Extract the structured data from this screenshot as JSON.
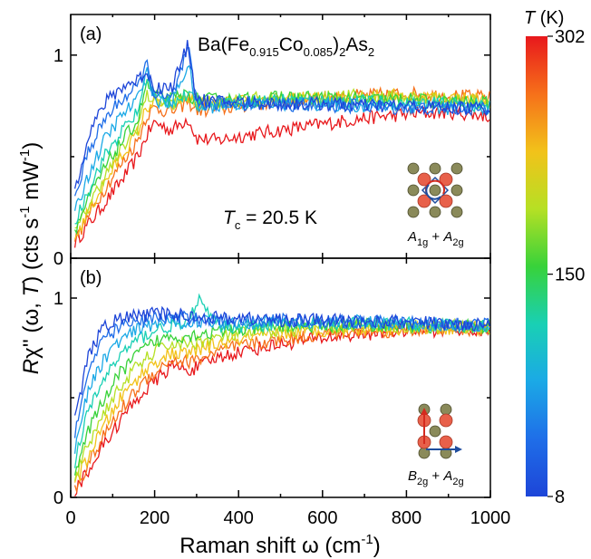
{
  "chart_data": [
    {
      "panel": "(a)",
      "type": "line",
      "compound": "Ba(Fe0.915Co0.085)2As2",
      "annotation": "Tc = 20.5 K",
      "symmetry": "A1g + A2g",
      "xlim": [
        0,
        1000
      ],
      "ylim": [
        0,
        1.2
      ],
      "yticks": [
        0,
        1
      ],
      "series": [
        {
          "T": 302,
          "color": "#e8181c",
          "x": [
            10,
            40,
            80,
            120,
            160,
            180,
            200,
            240,
            280,
            300,
            350,
            400,
            500,
            600,
            700,
            800,
            900,
            1000
          ],
          "y": [
            0.08,
            0.16,
            0.27,
            0.38,
            0.5,
            0.6,
            0.67,
            0.63,
            0.69,
            0.59,
            0.58,
            0.6,
            0.63,
            0.66,
            0.69,
            0.71,
            0.72,
            0.7
          ]
        },
        {
          "T": 260,
          "color": "#f6701a",
          "x": [
            10,
            40,
            80,
            120,
            160,
            180,
            200,
            240,
            280,
            300,
            350,
            400,
            500,
            600,
            700,
            800,
            900,
            1000
          ],
          "y": [
            0.09,
            0.2,
            0.34,
            0.46,
            0.58,
            0.7,
            0.74,
            0.72,
            0.77,
            0.73,
            0.73,
            0.75,
            0.77,
            0.79,
            0.8,
            0.81,
            0.8,
            0.79
          ]
        },
        {
          "T": 220,
          "color": "#f2c21a",
          "x": [
            10,
            40,
            80,
            120,
            160,
            180,
            200,
            240,
            280,
            300,
            350,
            400,
            500,
            600,
            700,
            800,
            900,
            1000
          ],
          "y": [
            0.1,
            0.22,
            0.37,
            0.5,
            0.62,
            0.74,
            0.77,
            0.75,
            0.8,
            0.76,
            0.76,
            0.77,
            0.78,
            0.79,
            0.8,
            0.8,
            0.79,
            0.78
          ]
        },
        {
          "T": 180,
          "color": "#b6e024",
          "x": [
            10,
            40,
            80,
            120,
            160,
            180,
            200,
            240,
            280,
            300,
            350,
            400,
            500,
            600,
            700,
            800,
            900,
            1000
          ],
          "y": [
            0.12,
            0.25,
            0.4,
            0.53,
            0.65,
            0.8,
            0.78,
            0.76,
            0.79,
            0.77,
            0.77,
            0.78,
            0.79,
            0.79,
            0.8,
            0.79,
            0.78,
            0.77
          ]
        },
        {
          "T": 150,
          "color": "#38d23a",
          "x": [
            10,
            40,
            80,
            120,
            160,
            180,
            200,
            240,
            280,
            300,
            350,
            400,
            500,
            600,
            700,
            800,
            900,
            1000
          ],
          "y": [
            0.14,
            0.28,
            0.44,
            0.57,
            0.68,
            0.86,
            0.8,
            0.78,
            0.81,
            0.78,
            0.78,
            0.78,
            0.79,
            0.79,
            0.78,
            0.78,
            0.77,
            0.76
          ]
        },
        {
          "T": 110,
          "color": "#19d0b4",
          "x": [
            10,
            40,
            80,
            120,
            160,
            180,
            200,
            240,
            280,
            300,
            350,
            400,
            500,
            600,
            700,
            800,
            900,
            1000
          ],
          "y": [
            0.17,
            0.33,
            0.5,
            0.62,
            0.72,
            0.9,
            0.79,
            0.77,
            0.8,
            0.76,
            0.77,
            0.77,
            0.78,
            0.77,
            0.77,
            0.76,
            0.76,
            0.75
          ]
        },
        {
          "T": 70,
          "color": "#1ba9e6",
          "x": [
            10,
            40,
            80,
            120,
            160,
            180,
            200,
            240,
            280,
            300,
            350,
            400,
            500,
            600,
            700,
            800,
            900,
            1000
          ],
          "y": [
            0.22,
            0.4,
            0.58,
            0.7,
            0.78,
            0.94,
            0.78,
            0.76,
            0.96,
            0.74,
            0.75,
            0.76,
            0.76,
            0.76,
            0.75,
            0.75,
            0.74,
            0.74
          ]
        },
        {
          "T": 30,
          "color": "#1f6ee8",
          "x": [
            10,
            40,
            80,
            120,
            160,
            180,
            200,
            240,
            280,
            300,
            350,
            400,
            500,
            600,
            700,
            800,
            900,
            1000
          ],
          "y": [
            0.28,
            0.52,
            0.68,
            0.78,
            0.84,
            0.96,
            0.8,
            0.78,
            1.03,
            0.76,
            0.76,
            0.76,
            0.76,
            0.75,
            0.75,
            0.74,
            0.74,
            0.73
          ]
        },
        {
          "T": 8,
          "color": "#1d45d8",
          "x": [
            10,
            40,
            80,
            120,
            160,
            180,
            200,
            240,
            280,
            300,
            350,
            400,
            500,
            600,
            700,
            800,
            900,
            1000
          ],
          "y": [
            0.33,
            0.6,
            0.76,
            0.84,
            0.88,
            0.92,
            0.84,
            0.84,
            1.05,
            0.78,
            0.77,
            0.77,
            0.76,
            0.76,
            0.75,
            0.75,
            0.74,
            0.74
          ]
        }
      ]
    },
    {
      "panel": "(b)",
      "type": "line",
      "symmetry": "B2g + A2g",
      "xlim": [
        0,
        1000
      ],
      "ylim": [
        0,
        1.2
      ],
      "yticks": [
        0,
        1
      ],
      "series": [
        {
          "T": 302,
          "color": "#e8181c",
          "x": [
            10,
            40,
            80,
            120,
            160,
            200,
            240,
            280,
            300,
            350,
            400,
            500,
            600,
            700,
            800,
            900,
            1000
          ],
          "y": [
            0.03,
            0.13,
            0.27,
            0.39,
            0.5,
            0.58,
            0.66,
            0.64,
            0.65,
            0.7,
            0.73,
            0.77,
            0.8,
            0.82,
            0.84,
            0.84,
            0.84
          ]
        },
        {
          "T": 260,
          "color": "#f6701a",
          "x": [
            10,
            40,
            80,
            120,
            160,
            200,
            240,
            280,
            300,
            350,
            400,
            500,
            600,
            700,
            800,
            900,
            1000
          ],
          "y": [
            0.04,
            0.16,
            0.31,
            0.44,
            0.55,
            0.63,
            0.69,
            0.68,
            0.69,
            0.73,
            0.76,
            0.79,
            0.82,
            0.83,
            0.84,
            0.85,
            0.84
          ]
        },
        {
          "T": 220,
          "color": "#f2c21a",
          "x": [
            10,
            40,
            80,
            120,
            160,
            200,
            240,
            280,
            300,
            350,
            400,
            500,
            600,
            700,
            800,
            900,
            1000
          ],
          "y": [
            0.06,
            0.2,
            0.36,
            0.5,
            0.6,
            0.68,
            0.72,
            0.72,
            0.74,
            0.77,
            0.79,
            0.82,
            0.84,
            0.85,
            0.85,
            0.85,
            0.85
          ]
        },
        {
          "T": 180,
          "color": "#b6e024",
          "x": [
            10,
            40,
            80,
            120,
            160,
            200,
            240,
            280,
            300,
            350,
            400,
            500,
            600,
            700,
            800,
            900,
            1000
          ],
          "y": [
            0.09,
            0.26,
            0.43,
            0.56,
            0.66,
            0.73,
            0.77,
            0.77,
            0.78,
            0.8,
            0.82,
            0.84,
            0.85,
            0.86,
            0.86,
            0.86,
            0.85
          ]
        },
        {
          "T": 150,
          "color": "#38d23a",
          "x": [
            10,
            40,
            80,
            120,
            160,
            200,
            240,
            280,
            300,
            350,
            400,
            500,
            600,
            700,
            800,
            900,
            1000
          ],
          "y": [
            0.12,
            0.32,
            0.5,
            0.63,
            0.72,
            0.78,
            0.81,
            0.81,
            0.82,
            0.83,
            0.84,
            0.86,
            0.86,
            0.87,
            0.86,
            0.86,
            0.86
          ]
        },
        {
          "T": 110,
          "color": "#19d0b4",
          "x": [
            10,
            40,
            80,
            120,
            160,
            200,
            240,
            280,
            300,
            350,
            400,
            500,
            600,
            700,
            800,
            900,
            1000
          ],
          "y": [
            0.18,
            0.42,
            0.6,
            0.72,
            0.79,
            0.84,
            0.86,
            0.86,
            1.0,
            0.86,
            0.86,
            0.87,
            0.87,
            0.87,
            0.87,
            0.86,
            0.86
          ]
        },
        {
          "T": 70,
          "color": "#1ba9e6",
          "x": [
            10,
            40,
            80,
            120,
            160,
            200,
            240,
            280,
            300,
            350,
            400,
            500,
            600,
            700,
            800,
            900,
            1000
          ],
          "y": [
            0.25,
            0.52,
            0.7,
            0.79,
            0.84,
            0.87,
            0.88,
            0.88,
            0.89,
            0.88,
            0.88,
            0.88,
            0.88,
            0.88,
            0.87,
            0.87,
            0.86
          ]
        },
        {
          "T": 30,
          "color": "#1f6ee8",
          "x": [
            10,
            40,
            80,
            120,
            160,
            200,
            240,
            280,
            300,
            350,
            400,
            500,
            600,
            700,
            800,
            900,
            1000
          ],
          "y": [
            0.32,
            0.62,
            0.8,
            0.86,
            0.88,
            0.9,
            0.9,
            0.9,
            0.9,
            0.89,
            0.89,
            0.89,
            0.88,
            0.88,
            0.88,
            0.87,
            0.87
          ]
        },
        {
          "T": 8,
          "color": "#1d45d8",
          "x": [
            10,
            40,
            80,
            120,
            160,
            200,
            240,
            280,
            300,
            350,
            400,
            500,
            600,
            700,
            800,
            900,
            1000
          ],
          "y": [
            0.38,
            0.7,
            0.86,
            0.9,
            0.91,
            0.92,
            0.92,
            0.91,
            0.91,
            0.9,
            0.9,
            0.89,
            0.89,
            0.88,
            0.88,
            0.87,
            0.87
          ]
        }
      ]
    }
  ],
  "xlabel": "Raman shift ω (cm",
  "xlabel_sup": "-1",
  "xlabel_end": ")",
  "xticks": [
    0,
    200,
    400,
    600,
    800,
    1000
  ],
  "ylabel_R": "R",
  "ylabel_rest": "χ'' (ω, ",
  "ylabel_T": "T",
  "ylabel_units": ") (cts s",
  "ylabel_sup1": "-1",
  "ylabel_mw": " mW",
  "ylabel_sup2": "-1",
  "ylabel_end": ")",
  "title_parts": {
    "base": "Ba(Fe",
    "sub1": "0.915",
    "mid": "Co",
    "sub2": "0.085",
    "mid2": ")",
    "sub3": "2",
    "mid3": "As",
    "sub4": "2"
  },
  "tc_label": {
    "T": "T",
    "sub": "c",
    "rest": " = 20.5 K"
  },
  "inset_a": {
    "A1": "A",
    "sub1": "1g",
    "plus": " + ",
    "A2": "A",
    "sub2": "2g"
  },
  "inset_b": {
    "B": "B",
    "sub1": "2g",
    "plus": " + ",
    "A2": "A",
    "sub2": "2g"
  },
  "colorbar": {
    "title_T": "T",
    "title_unit": " (K)",
    "ticks": [
      302,
      150,
      8
    ],
    "stops": [
      "#e8181c",
      "#f6701a",
      "#f2c21a",
      "#b6e024",
      "#38d23a",
      "#19d0b4",
      "#1ba9e6",
      "#1f6ee8",
      "#1d45d8"
    ]
  },
  "colors": {
    "atom_fe": "#e8604a",
    "atom_as": "#8a8a5a",
    "arrow_red": "#d42a1e",
    "arrow_blue": "#1f4d9e"
  }
}
